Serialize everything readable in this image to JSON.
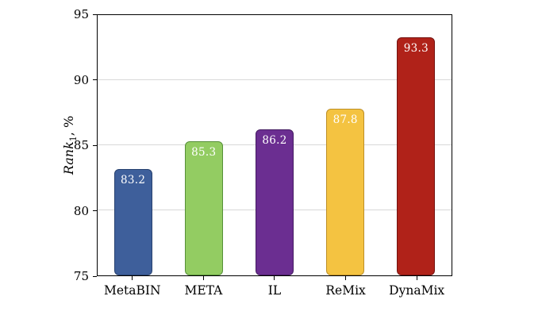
{
  "chart_data": {
    "type": "bar",
    "title": "",
    "categories": [
      "MetaBIN",
      "META",
      "IL",
      "ReMix",
      "DynaMix"
    ],
    "values": [
      83.2,
      85.3,
      86.2,
      87.8,
      93.3
    ],
    "value_labels": [
      "83.2",
      "85.3",
      "86.2",
      "87.8",
      "93.3"
    ],
    "bar_colors": [
      "#3e5f9b",
      "#93cc62",
      "#6b2e91",
      "#f4c341",
      "#b02219"
    ],
    "bar_border_colors": [
      "#28426f",
      "#569038",
      "#441b61",
      "#bd8f27",
      "#741310"
    ],
    "value_label_color": "#ffffff",
    "xlabel": "",
    "ylabel_main": "Rank",
    "ylabel_sub": "1",
    "ylabel_suffix": ", %",
    "yticks": [
      75,
      80,
      85,
      90,
      95
    ],
    "ylim": [
      75,
      95
    ],
    "grid": "horizontal-major",
    "grid_color": "#d8d8d8",
    "legend": "none"
  }
}
